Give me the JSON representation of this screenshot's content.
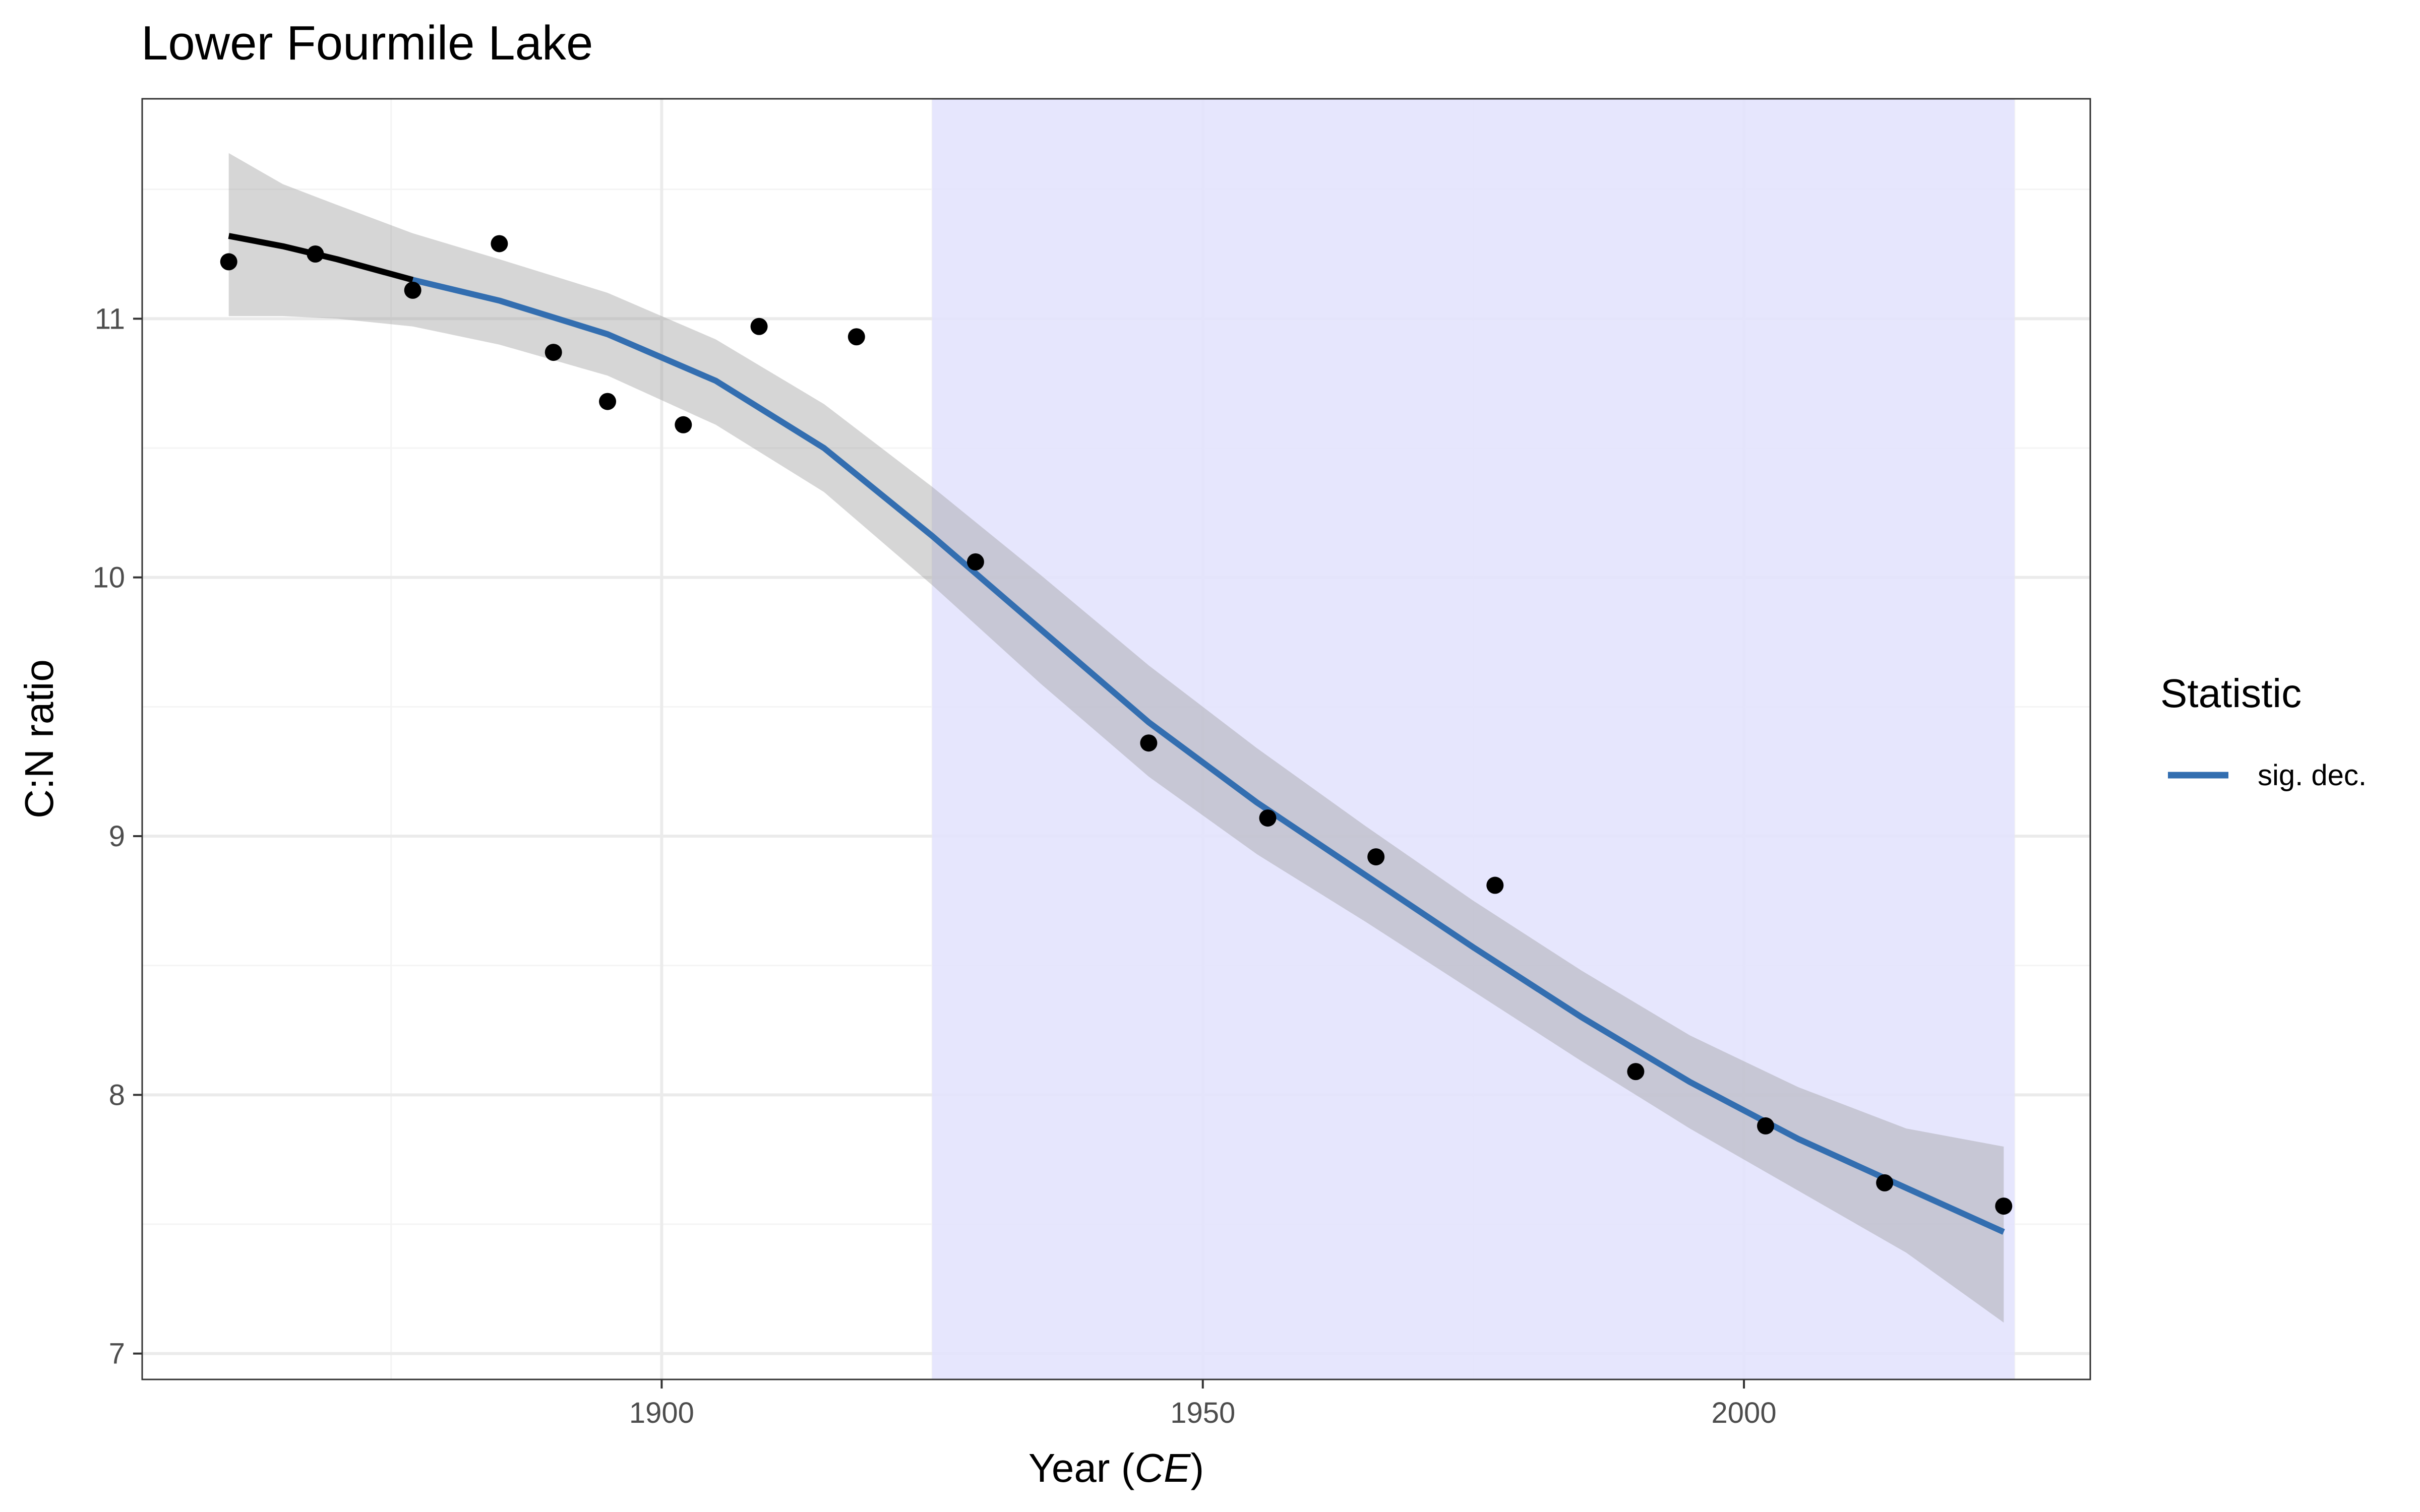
{
  "chart_data": {
    "type": "line",
    "title": "Lower Fourmile Lake",
    "xlabel_prefix": "Year (",
    "xlabel_italic": "CE",
    "xlabel_suffix": ")",
    "ylabel": "C:N ratio",
    "xlim": [
      1852,
      2032
    ],
    "ylim": [
      6.9,
      11.85
    ],
    "x_ticks": [
      1900,
      1950,
      2000
    ],
    "y_ticks": [
      7,
      8,
      9,
      10,
      11
    ],
    "grid": true,
    "shaded_interval": {
      "x": [
        1925,
        2025
      ],
      "color": "#e3e3fd"
    },
    "points": {
      "x": [
        1860,
        1868,
        1877,
        1885,
        1890,
        1895,
        1902,
        1909,
        1918,
        1929,
        1945,
        1956,
        1966,
        1977,
        1990,
        2002,
        2013,
        2024
      ],
      "y": [
        11.22,
        11.25,
        11.11,
        11.29,
        10.87,
        10.68,
        10.59,
        10.97,
        10.93,
        10.06,
        9.36,
        9.07,
        8.92,
        8.81,
        8.09,
        7.88,
        7.66,
        7.57
      ]
    },
    "fit": {
      "x": [
        1860,
        1865,
        1870,
        1877,
        1885,
        1895,
        1905,
        1915,
        1925,
        1935,
        1945,
        1955,
        1965,
        1975,
        1985,
        1995,
        2005,
        2015,
        2024
      ],
      "y": [
        11.32,
        11.28,
        11.23,
        11.15,
        11.07,
        10.94,
        10.76,
        10.5,
        10.16,
        9.8,
        9.44,
        9.13,
        8.85,
        8.57,
        8.3,
        8.05,
        7.83,
        7.64,
        7.47
      ],
      "lower": [
        11.01,
        11.01,
        11.0,
        10.97,
        10.9,
        10.78,
        10.59,
        10.33,
        9.97,
        9.59,
        9.23,
        8.93,
        8.67,
        8.4,
        8.13,
        7.87,
        7.63,
        7.39,
        7.12
      ],
      "upper": [
        11.64,
        11.52,
        11.44,
        11.33,
        11.23,
        11.1,
        10.92,
        10.67,
        10.35,
        10.01,
        9.66,
        9.34,
        9.04,
        8.75,
        8.48,
        8.23,
        8.03,
        7.87,
        7.8
      ]
    },
    "series": [
      {
        "name": "",
        "x_range": [
          1860,
          1877
        ],
        "color": "#000000"
      },
      {
        "name": "sig. dec.",
        "x_range": [
          1877,
          2024
        ],
        "color": "#336eb0"
      }
    ],
    "legend": {
      "title": "Statistic",
      "position": "right",
      "items": [
        {
          "label": "sig. dec.",
          "color": "#336eb0"
        }
      ]
    },
    "colors": {
      "panel_border": "#333333",
      "grid_major": "#ebebeb",
      "grid_minor": "#f4f4f4",
      "ribbon": "#999999",
      "point": "#000000"
    }
  }
}
